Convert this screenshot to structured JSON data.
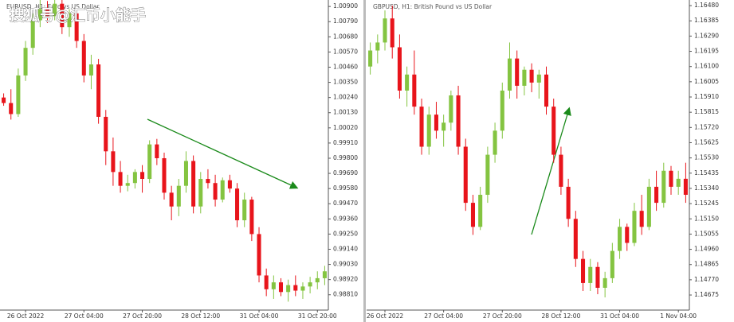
{
  "watermark": "搜狐号@汇币小能手",
  "chart_data": [
    {
      "type": "candlestick",
      "title": "EURUSD, H1: Euro vs US Dollar",
      "up_color": "#84c441",
      "down_color": "#e8141b",
      "categories": [
        null,
        null,
        null,
        "26 Oct 2022",
        null,
        null,
        null,
        null,
        null,
        null,
        null,
        "27 Oct 04:00",
        null,
        null,
        null,
        null,
        null,
        null,
        null,
        "27 Oct 20:00",
        null,
        null,
        null,
        null,
        null,
        null,
        null,
        "28 Oct 12:00",
        null,
        null,
        null,
        null,
        null,
        null,
        null,
        "31 Oct 04:00",
        null,
        null,
        null,
        null,
        null,
        null,
        null,
        "31 Oct 20:00",
        null
      ],
      "ohlc": [
        [
          1.0024,
          1.0027,
          1.0018,
          1.002
        ],
        [
          1.002,
          1.003,
          1.0008,
          1.0012
        ],
        [
          1.0012,
          1.0045,
          1.001,
          1.004
        ],
        [
          1.004,
          1.0065,
          1.0036,
          1.006
        ],
        [
          1.006,
          1.0085,
          1.0055,
          1.008
        ],
        [
          1.008,
          1.0095,
          1.0075,
          1.0088
        ],
        [
          1.0088,
          1.0094,
          1.0078,
          1.0083
        ],
        [
          1.0083,
          1.0098,
          1.008,
          1.0092
        ],
        [
          1.0092,
          1.0096,
          1.007,
          1.0075
        ],
        [
          1.0075,
          1.0088,
          1.0068,
          1.0085
        ],
        [
          1.0085,
          1.0088,
          1.006,
          1.0065
        ],
        [
          1.0065,
          1.007,
          1.0035,
          1.004
        ],
        [
          1.004,
          1.0055,
          1.003,
          1.0048
        ],
        [
          1.0048,
          1.0052,
          1.0005,
          1.001
        ],
        [
          1.001,
          1.0015,
          0.9975,
          0.9985
        ],
        [
          0.9985,
          0.9995,
          0.996,
          0.997
        ],
        [
          0.997,
          0.9978,
          0.9955,
          0.996
        ],
        [
          0.996,
          0.9968,
          0.9956,
          0.9962
        ],
        [
          0.9962,
          0.9972,
          0.9958,
          0.997
        ],
        [
          0.997,
          0.9975,
          0.9955,
          0.9965
        ],
        [
          0.9965,
          0.9993,
          0.9962,
          0.999
        ],
        [
          0.999,
          0.9994,
          0.9975,
          0.998
        ],
        [
          0.998,
          0.9984,
          0.995,
          0.9955
        ],
        [
          0.9955,
          0.996,
          0.9935,
          0.9945
        ],
        [
          0.9945,
          0.9965,
          0.9938,
          0.996
        ],
        [
          0.996,
          0.9985,
          0.9955,
          0.9978
        ],
        [
          0.9978,
          0.9982,
          0.994,
          0.9945
        ],
        [
          0.9945,
          0.997,
          0.994,
          0.9965
        ],
        [
          0.9965,
          0.9972,
          0.9958,
          0.9962
        ],
        [
          0.9962,
          0.9968,
          0.9945,
          0.995
        ],
        [
          0.995,
          0.9966,
          0.9948,
          0.9964
        ],
        [
          0.9964,
          0.9968,
          0.9955,
          0.9958
        ],
        [
          0.9958,
          0.9962,
          0.993,
          0.9935
        ],
        [
          0.9935,
          0.9955,
          0.993,
          0.995
        ],
        [
          0.995,
          0.9952,
          0.992,
          0.9925
        ],
        [
          0.9925,
          0.993,
          0.989,
          0.9895
        ],
        [
          0.9895,
          0.99,
          0.988,
          0.9885
        ],
        [
          0.9885,
          0.9895,
          0.9878,
          0.989
        ],
        [
          0.989,
          0.9893,
          0.988,
          0.9883
        ],
        [
          0.9883,
          0.9892,
          0.9876,
          0.9888
        ],
        [
          0.9888,
          0.9895,
          0.988,
          0.9884
        ],
        [
          0.9884,
          0.989,
          0.9878,
          0.9887
        ],
        [
          0.9887,
          0.9894,
          0.9882,
          0.989
        ],
        [
          0.989,
          0.9898,
          0.9885,
          0.9893
        ],
        [
          0.9893,
          0.9902,
          0.9888,
          0.9898
        ]
      ],
      "ylim": [
        0.98699,
        1.00947
      ],
      "yticks": [
        {
          "value": 1.009,
          "label": "1.00900"
        },
        {
          "value": 1.0079,
          "label": "1.00790"
        },
        {
          "value": 1.0068,
          "label": "1.00680"
        },
        {
          "value": 1.0057,
          "label": "1.00570"
        },
        {
          "value": 1.0046,
          "label": "1.00460"
        },
        {
          "value": 1.0035,
          "label": "1.00350"
        },
        {
          "value": 1.0024,
          "label": "1.00240"
        },
        {
          "value": 1.0013,
          "label": "1.00130"
        },
        {
          "value": 1.0002,
          "label": "1.00020"
        },
        {
          "value": 0.9991,
          "label": "0.99910"
        },
        {
          "value": 0.998,
          "label": "0.99800"
        },
        {
          "value": 0.9969,
          "label": "0.99690"
        },
        {
          "value": 0.9958,
          "label": "0.99580"
        },
        {
          "value": 0.9947,
          "label": "0.99470"
        },
        {
          "value": 0.9936,
          "label": "0.99360"
        },
        {
          "value": 0.9925,
          "label": "0.99250"
        },
        {
          "value": 0.9914,
          "label": "0.99140"
        },
        {
          "value": 0.9903,
          "label": "0.99030"
        },
        {
          "value": 0.9892,
          "label": "0.98920"
        },
        {
          "value": 0.9881,
          "label": "0.98810"
        }
      ]
    },
    {
      "type": "candlestick",
      "title": "GBPUSD, H1: British Pound vs US Dollar",
      "up_color": "#84c441",
      "down_color": "#e8141b",
      "categories": [
        null,
        null,
        "26 Oct 2022",
        null,
        null,
        null,
        null,
        null,
        null,
        null,
        "27 Oct 04:00",
        null,
        null,
        null,
        null,
        null,
        null,
        null,
        "27 Oct 20:00",
        null,
        null,
        null,
        null,
        null,
        null,
        null,
        "28 Oct 12:00",
        null,
        null,
        null,
        null,
        null,
        null,
        null,
        "31 Oct 04:00",
        null,
        null,
        null,
        null,
        null,
        null,
        null,
        "1 Nov 04:00",
        null
      ],
      "ohlc": [
        [
          1.161,
          1.1625,
          1.1605,
          1.162
        ],
        [
          1.162,
          1.163,
          1.1612,
          1.1625
        ],
        [
          1.1625,
          1.1645,
          1.162,
          1.164
        ],
        [
          1.164,
          1.1648,
          1.1615,
          1.1622
        ],
        [
          1.1622,
          1.163,
          1.159,
          1.1595
        ],
        [
          1.1595,
          1.161,
          1.1585,
          1.1605
        ],
        [
          1.1605,
          1.162,
          1.158,
          1.1585
        ],
        [
          1.1585,
          1.159,
          1.1555,
          1.156
        ],
        [
          1.156,
          1.1585,
          1.1555,
          1.158
        ],
        [
          1.158,
          1.1588,
          1.1565,
          1.157
        ],
        [
          1.157,
          1.158,
          1.156,
          1.1575
        ],
        [
          1.1575,
          1.1595,
          1.157,
          1.1592
        ],
        [
          1.1592,
          1.1598,
          1.1555,
          1.156
        ],
        [
          1.156,
          1.1565,
          1.152,
          1.1525
        ],
        [
          1.1525,
          1.153,
          1.1505,
          1.151
        ],
        [
          1.151,
          1.1535,
          1.1508,
          1.153
        ],
        [
          1.153,
          1.156,
          1.1525,
          1.1555
        ],
        [
          1.1555,
          1.1575,
          1.155,
          1.157
        ],
        [
          1.157,
          1.16,
          1.1565,
          1.1595
        ],
        [
          1.1595,
          1.1625,
          1.159,
          1.1615
        ],
        [
          1.1615,
          1.162,
          1.159,
          1.1598
        ],
        [
          1.1598,
          1.161,
          1.1592,
          1.1608
        ],
        [
          1.1608,
          1.1612,
          1.1594,
          1.16
        ],
        [
          1.16,
          1.1608,
          1.159,
          1.1605
        ],
        [
          1.1605,
          1.161,
          1.158,
          1.1585
        ],
        [
          1.1585,
          1.159,
          1.155,
          1.1555
        ],
        [
          1.1555,
          1.156,
          1.153,
          1.1535
        ],
        [
          1.1535,
          1.154,
          1.151,
          1.1515
        ],
        [
          1.1515,
          1.152,
          1.1485,
          1.149
        ],
        [
          1.149,
          1.1495,
          1.147,
          1.1475
        ],
        [
          1.1475,
          1.149,
          1.147,
          1.1485
        ],
        [
          1.1485,
          1.1488,
          1.1468,
          1.1472
        ],
        [
          1.1472,
          1.1482,
          1.1466,
          1.1478
        ],
        [
          1.1478,
          1.15,
          1.1475,
          1.1495
        ],
        [
          1.1495,
          1.1515,
          1.149,
          1.151
        ],
        [
          1.151,
          1.1512,
          1.1495,
          1.15
        ],
        [
          1.15,
          1.1525,
          1.1498,
          1.152
        ],
        [
          1.152,
          1.153,
          1.1505,
          1.151
        ],
        [
          1.151,
          1.154,
          1.1508,
          1.1535
        ],
        [
          1.1535,
          1.1545,
          1.152,
          1.1525
        ],
        [
          1.1525,
          1.155,
          1.1522,
          1.1545
        ],
        [
          1.1545,
          1.1548,
          1.153,
          1.1535
        ],
        [
          1.1535,
          1.1545,
          1.153,
          1.154
        ],
        [
          1.154,
          1.155,
          1.1525,
          1.153
        ]
      ],
      "ylim": [
        1.14581,
        1.16515
      ],
      "yticks": [
        {
          "value": 1.1648,
          "label": "1.16480"
        },
        {
          "value": 1.16385,
          "label": "1.16385"
        },
        {
          "value": 1.1629,
          "label": "1.16290"
        },
        {
          "value": 1.16195,
          "label": "1.16195"
        },
        {
          "value": 1.161,
          "label": "1.16100"
        },
        {
          "value": 1.16005,
          "label": "1.16005"
        },
        {
          "value": 1.1591,
          "label": "1.15910"
        },
        {
          "value": 1.15815,
          "label": "1.15815"
        },
        {
          "value": 1.1572,
          "label": "1.15720"
        },
        {
          "value": 1.15625,
          "label": "1.15625"
        },
        {
          "value": 1.1553,
          "label": "1.15530"
        },
        {
          "value": 1.15435,
          "label": "1.15435"
        },
        {
          "value": 1.1534,
          "label": "1.15340"
        },
        {
          "value": 1.15245,
          "label": "1.15245"
        },
        {
          "value": 1.1515,
          "label": "1.15150"
        },
        {
          "value": 1.15055,
          "label": "1.15055"
        },
        {
          "value": 1.1496,
          "label": "1.14960"
        },
        {
          "value": 1.14865,
          "label": "1.14865"
        },
        {
          "value": 1.1477,
          "label": "1.14770"
        },
        {
          "value": 1.14675,
          "label": "1.14675"
        }
      ]
    }
  ]
}
